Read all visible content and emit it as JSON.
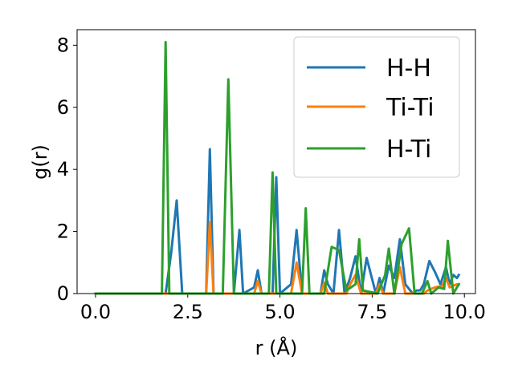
{
  "chart_data": {
    "type": "line",
    "xlabel": "r (Å)",
    "ylabel": "g(r)",
    "xlim": [
      -0.5,
      10.3
    ],
    "ylim": [
      0,
      8.5
    ],
    "x_ticks": [
      "0.0",
      "2.5",
      "5.0",
      "7.5",
      "10.0"
    ],
    "y_ticks": [
      "0",
      "2",
      "4",
      "6",
      "8"
    ],
    "legend_placement": "upper-right",
    "grid": false,
    "colors": {
      "H-H": "#1f77b4",
      "Ti-Ti": "#ff7f0e",
      "H-Ti": "#2ca02c"
    },
    "series": [
      {
        "name": "H-H",
        "x": [
          0.0,
          1.9,
          2.05,
          2.2,
          2.35,
          3.0,
          3.1,
          3.2,
          3.75,
          3.9,
          4.0,
          4.3,
          4.4,
          4.5,
          4.8,
          4.9,
          5.0,
          5.3,
          5.45,
          5.6,
          6.1,
          6.2,
          6.3,
          6.45,
          6.6,
          6.75,
          6.9,
          7.05,
          7.2,
          7.35,
          7.6,
          7.7,
          7.8,
          7.95,
          8.1,
          8.25,
          8.4,
          8.6,
          8.7,
          8.8,
          8.9,
          9.05,
          9.2,
          9.35,
          9.5,
          9.6,
          9.7,
          9.8,
          9.85
        ],
        "values": [
          0,
          0,
          1.3,
          3.0,
          0,
          0,
          4.65,
          0,
          0,
          2.05,
          0,
          0.2,
          0.75,
          0,
          0,
          3.75,
          0,
          0.3,
          2.05,
          0,
          0,
          0.75,
          0.3,
          0,
          2.05,
          0,
          0.5,
          1.2,
          0,
          1.15,
          0,
          0.5,
          0,
          0.9,
          0.5,
          1.75,
          0.3,
          0,
          0.1,
          0.1,
          0.3,
          1.05,
          0.7,
          0.3,
          0.85,
          0.3,
          0.6,
          0.5,
          0.6
        ]
      },
      {
        "name": "Ti-Ti",
        "x": [
          0.0,
          3.0,
          3.1,
          3.2,
          4.3,
          4.4,
          4.5,
          5.3,
          5.45,
          5.6,
          6.1,
          6.2,
          6.3,
          6.8,
          6.9,
          7.05,
          7.2,
          7.6,
          7.7,
          7.8,
          8.1,
          8.25,
          8.4,
          8.9,
          9.0,
          9.2,
          9.4,
          9.5,
          9.6,
          9.8,
          9.85
        ],
        "values": [
          0,
          0,
          2.3,
          0,
          0,
          0.4,
          0,
          0,
          1.0,
          0,
          0,
          0.35,
          0,
          0,
          0.3,
          0.6,
          0,
          0,
          0.3,
          0,
          0,
          0.85,
          0,
          0,
          0.1,
          0.2,
          0.25,
          0.5,
          0.2,
          0.3,
          0.3
        ]
      },
      {
        "name": "H-Ti",
        "x": [
          0.0,
          1.8,
          1.9,
          2.0,
          3.45,
          3.6,
          3.75,
          4.7,
          4.8,
          4.9,
          5.6,
          5.7,
          5.8,
          6.2,
          6.4,
          6.6,
          6.8,
          7.05,
          7.15,
          7.25,
          7.65,
          7.85,
          7.95,
          8.1,
          8.3,
          8.5,
          8.65,
          8.85,
          9.0,
          9.1,
          9.3,
          9.45,
          9.55,
          9.7,
          9.85
        ],
        "values": [
          0,
          0,
          8.1,
          0,
          0,
          6.9,
          0,
          0,
          3.9,
          0,
          0,
          2.75,
          0,
          0,
          1.5,
          1.4,
          0.1,
          0.3,
          1.75,
          0.1,
          0,
          0.6,
          1.45,
          0,
          1.6,
          2.1,
          0,
          0,
          0.4,
          0,
          0.2,
          0.15,
          1.7,
          0,
          0.3
        ]
      }
    ]
  }
}
